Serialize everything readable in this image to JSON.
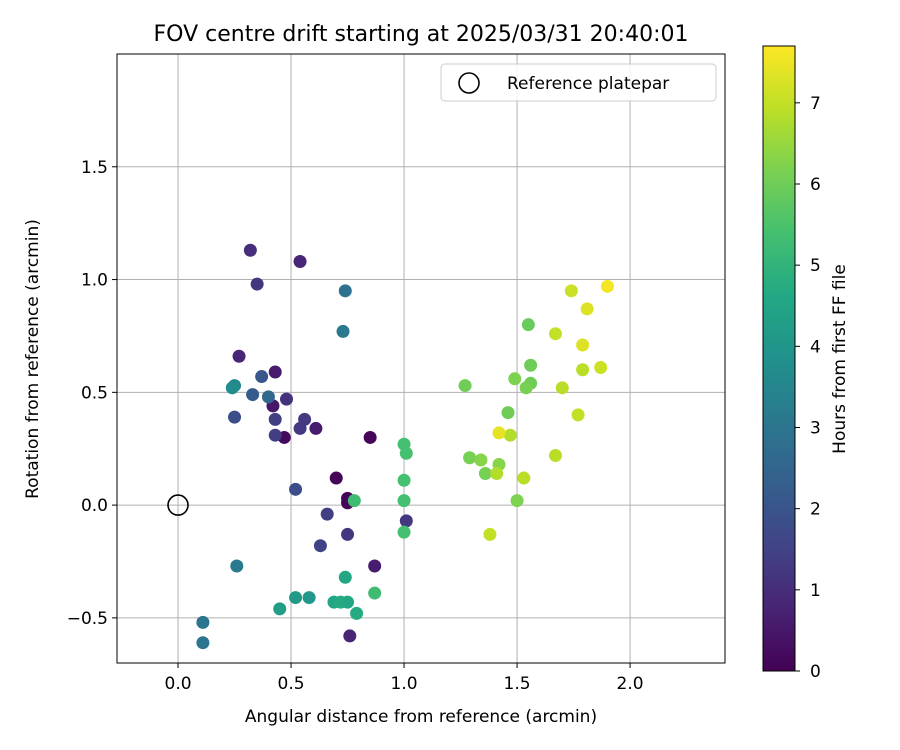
{
  "chart_data": {
    "type": "scatter",
    "title": "FOV centre drift starting at 2025/03/31 20:40:01",
    "xlabel": "Angular distance from reference (arcmin)",
    "ylabel": "Rotation from reference (arcmin)",
    "xlim": [
      -0.27,
      2.42
    ],
    "ylim": [
      -0.7,
      2.0
    ],
    "xticks": [
      0.0,
      0.5,
      1.0,
      1.5,
      2.0
    ],
    "xtick_labels": [
      "0.0",
      "0.5",
      "1.0",
      "1.5",
      "2.0"
    ],
    "yticks": [
      -0.5,
      0.0,
      0.5,
      1.0,
      1.5
    ],
    "ytick_labels": [
      "−0.5",
      "0.0",
      "0.5",
      "1.0",
      "1.5"
    ],
    "grid": true,
    "legend": {
      "position": "top-right",
      "entries": [
        "Reference platepar"
      ]
    },
    "reference_point": {
      "x": 0.0,
      "y": 0.0
    },
    "colorbar": {
      "label": "Hours from first FF file",
      "colormap": "viridis",
      "range": [
        0,
        7.7
      ],
      "ticks": [
        0,
        1,
        2,
        3,
        4,
        5,
        6,
        7
      ],
      "tick_labels": [
        "0",
        "1",
        "2",
        "3",
        "4",
        "5",
        "6",
        "7"
      ]
    },
    "points": [
      {
        "x": 0.7,
        "y": 0.12,
        "c": 0.1
      },
      {
        "x": 0.75,
        "y": 0.03,
        "c": 0.1
      },
      {
        "x": 0.75,
        "y": 0.01,
        "c": 0.1
      },
      {
        "x": 0.47,
        "y": 0.3,
        "c": 0.2
      },
      {
        "x": 0.85,
        "y": 0.3,
        "c": 0.1
      },
      {
        "x": 0.42,
        "y": 0.44,
        "c": 0.5
      },
      {
        "x": 0.61,
        "y": 0.34,
        "c": 0.6
      },
      {
        "x": 0.87,
        "y": -0.27,
        "c": 0.6
      },
      {
        "x": 0.76,
        "y": -0.58,
        "c": 0.8
      },
      {
        "x": 0.43,
        "y": 0.59,
        "c": 0.6
      },
      {
        "x": 0.27,
        "y": 0.66,
        "c": 0.8
      },
      {
        "x": 0.54,
        "y": 1.08,
        "c": 0.8
      },
      {
        "x": 0.32,
        "y": 1.13,
        "c": 1.0
      },
      {
        "x": 0.35,
        "y": 0.98,
        "c": 1.2
      },
      {
        "x": 0.48,
        "y": 0.47,
        "c": 1.1
      },
      {
        "x": 0.56,
        "y": 0.38,
        "c": 1.3
      },
      {
        "x": 0.54,
        "y": 0.34,
        "c": 1.3
      },
      {
        "x": 0.43,
        "y": 0.38,
        "c": 1.4
      },
      {
        "x": 0.43,
        "y": 0.31,
        "c": 1.4
      },
      {
        "x": 0.75,
        "y": -0.13,
        "c": 1.2
      },
      {
        "x": 1.01,
        "y": -0.07,
        "c": 1.2
      },
      {
        "x": 0.66,
        "y": -0.04,
        "c": 1.4
      },
      {
        "x": 0.63,
        "y": -0.18,
        "c": 1.5
      },
      {
        "x": 0.52,
        "y": 0.07,
        "c": 1.8
      },
      {
        "x": 0.25,
        "y": 0.39,
        "c": 1.8
      },
      {
        "x": 0.33,
        "y": 0.49,
        "c": 2.2
      },
      {
        "x": 0.37,
        "y": 0.57,
        "c": 2.1
      },
      {
        "x": 0.4,
        "y": 0.48,
        "c": 2.6
      },
      {
        "x": 0.74,
        "y": 0.95,
        "c": 2.9
      },
      {
        "x": 0.73,
        "y": 0.77,
        "c": 3.1
      },
      {
        "x": 0.25,
        "y": 0.53,
        "c": 3.5
      },
      {
        "x": 0.24,
        "y": 0.52,
        "c": 3.7
      },
      {
        "x": 0.26,
        "y": -0.27,
        "c": 3.1
      },
      {
        "x": 0.11,
        "y": -0.52,
        "c": 3.0
      },
      {
        "x": 0.11,
        "y": -0.61,
        "c": 3.0
      },
      {
        "x": 0.45,
        "y": -0.46,
        "c": 4.3
      },
      {
        "x": 0.52,
        "y": -0.41,
        "c": 4.2
      },
      {
        "x": 0.58,
        "y": -0.41,
        "c": 4.1
      },
      {
        "x": 0.69,
        "y": -0.43,
        "c": 4.6
      },
      {
        "x": 0.72,
        "y": -0.43,
        "c": 4.7
      },
      {
        "x": 0.75,
        "y": -0.43,
        "c": 4.6
      },
      {
        "x": 0.74,
        "y": -0.32,
        "c": 4.6
      },
      {
        "x": 0.79,
        "y": -0.48,
        "c": 4.7
      },
      {
        "x": 0.87,
        "y": -0.39,
        "c": 5.3
      },
      {
        "x": 0.78,
        "y": 0.02,
        "c": 5.3
      },
      {
        "x": 1.0,
        "y": 0.27,
        "c": 5.4
      },
      {
        "x": 1.01,
        "y": 0.23,
        "c": 5.4
      },
      {
        "x": 1.0,
        "y": 0.11,
        "c": 5.4
      },
      {
        "x": 1.0,
        "y": 0.02,
        "c": 5.4
      },
      {
        "x": 1.0,
        "y": -0.12,
        "c": 5.4
      },
      {
        "x": 1.27,
        "y": 0.53,
        "c": 6.0
      },
      {
        "x": 1.29,
        "y": 0.21,
        "c": 6.1
      },
      {
        "x": 1.55,
        "y": 0.8,
        "c": 5.9
      },
      {
        "x": 1.56,
        "y": 0.62,
        "c": 6.0
      },
      {
        "x": 1.49,
        "y": 0.56,
        "c": 6.2
      },
      {
        "x": 1.56,
        "y": 0.54,
        "c": 6.0
      },
      {
        "x": 1.54,
        "y": 0.52,
        "c": 6.1
      },
      {
        "x": 1.46,
        "y": 0.41,
        "c": 6.0
      },
      {
        "x": 1.34,
        "y": 0.2,
        "c": 6.3
      },
      {
        "x": 1.36,
        "y": 0.14,
        "c": 6.1
      },
      {
        "x": 1.42,
        "y": 0.18,
        "c": 6.3
      },
      {
        "x": 1.41,
        "y": 0.14,
        "c": 6.8
      },
      {
        "x": 1.5,
        "y": 0.02,
        "c": 6.2
      },
      {
        "x": 1.47,
        "y": 0.31,
        "c": 6.8
      },
      {
        "x": 1.42,
        "y": 0.32,
        "c": 7.4
      },
      {
        "x": 1.38,
        "y": -0.13,
        "c": 7.0
      },
      {
        "x": 1.53,
        "y": 0.12,
        "c": 6.9
      },
      {
        "x": 1.67,
        "y": 0.76,
        "c": 7.0
      },
      {
        "x": 1.74,
        "y": 0.95,
        "c": 7.1
      },
      {
        "x": 1.81,
        "y": 0.87,
        "c": 7.3
      },
      {
        "x": 1.79,
        "y": 0.71,
        "c": 7.3
      },
      {
        "x": 1.7,
        "y": 0.52,
        "c": 6.9
      },
      {
        "x": 1.79,
        "y": 0.6,
        "c": 6.9
      },
      {
        "x": 1.87,
        "y": 0.61,
        "c": 7.1
      },
      {
        "x": 1.9,
        "y": 0.97,
        "c": 7.6
      },
      {
        "x": 1.77,
        "y": 0.4,
        "c": 7.0
      },
      {
        "x": 1.67,
        "y": 0.22,
        "c": 6.9
      }
    ]
  }
}
